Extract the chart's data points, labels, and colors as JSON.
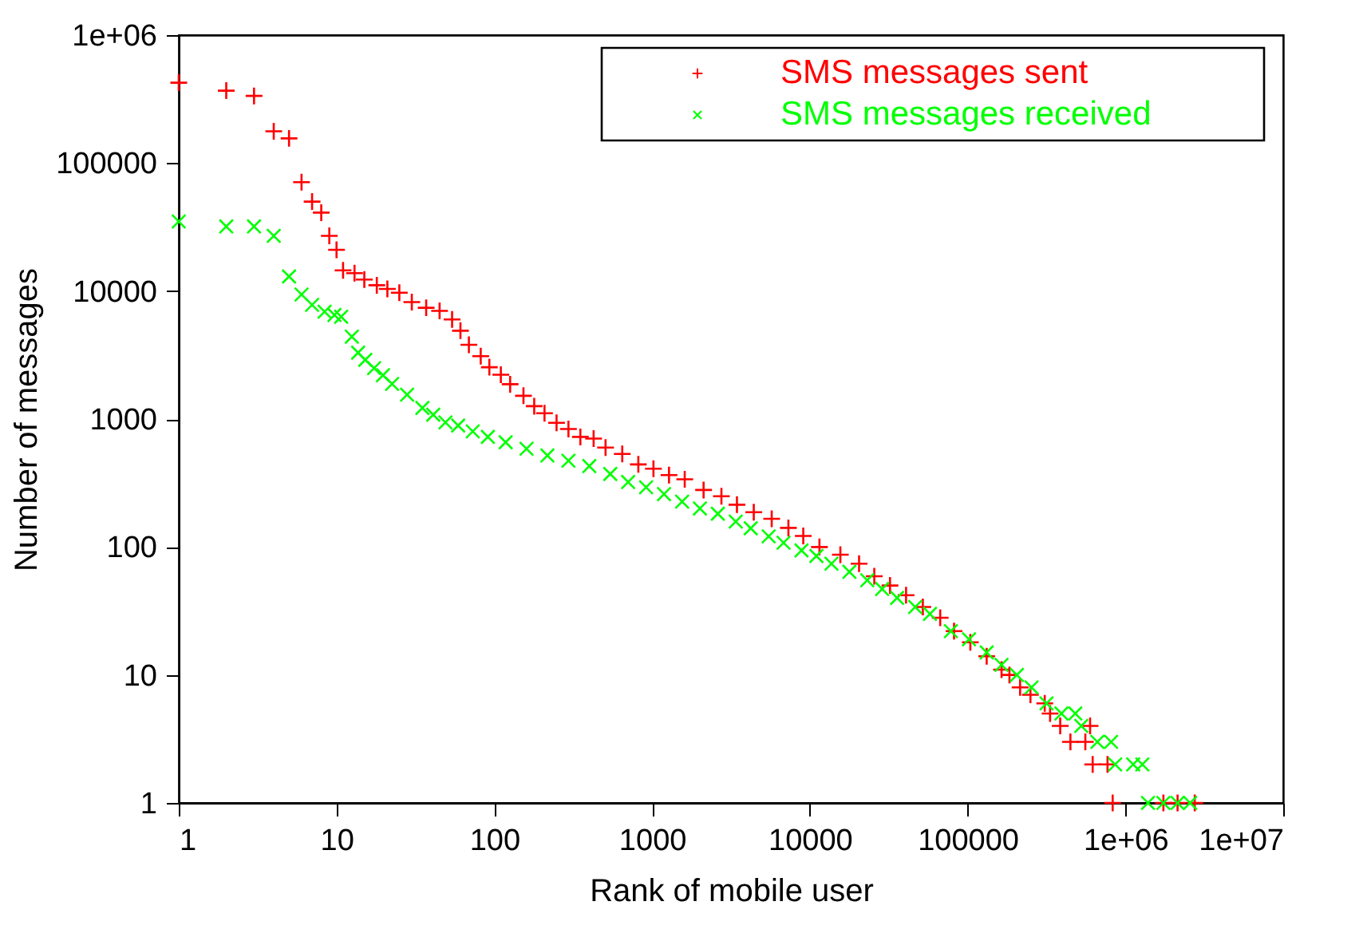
{
  "chart_data": {
    "type": "scatter",
    "xlabel": "Rank of mobile user",
    "ylabel": "Number of messages",
    "log": "xy",
    "grid": false,
    "legend": "top right",
    "xlim": [
      1,
      10000000
    ],
    "ylim": [
      1,
      1000000
    ],
    "xticks": [
      1,
      10,
      100,
      1000,
      10000,
      100000,
      {
        "value": 1000000,
        "label": "1e+06"
      },
      {
        "value": 10000000,
        "label": "1e+07"
      }
    ],
    "yticks": [
      1,
      10,
      100,
      1000,
      10000,
      100000,
      {
        "value": 1000000,
        "label": "1e+06"
      }
    ],
    "series": [
      {
        "name": "SMS messages sent",
        "color": "#ff0000",
        "marker": "cross",
        "x": [
          1,
          2,
          3,
          4,
          5,
          6,
          7,
          8,
          9,
          10,
          11,
          13,
          15,
          18,
          21,
          25,
          30,
          37,
          45,
          54,
          61,
          69,
          82,
          93,
          110,
          126,
          153,
          179,
          208,
          248,
          295,
          351,
          426,
          507,
          647,
          818,
          1020,
          1280,
          1610,
          2120,
          2750,
          3450,
          4410,
          5730,
          7310,
          9080,
          11500,
          15600,
          20500,
          25600,
          32200,
          40700,
          52000,
          67000,
          82000,
          104000,
          132000,
          164000,
          184000,
          215000,
          250000,
          308000,
          333000,
          386000,
          448000,
          557000,
          597000,
          620000,
          770000,
          830000,
          1740000,
          2140000,
          2750000
        ],
        "values": [
          425000,
          368000,
          335000,
          177000,
          156000,
          71000,
          50000,
          41000,
          27000,
          21000,
          14500,
          13800,
          12300,
          11100,
          10400,
          9700,
          8200,
          7400,
          7000,
          6000,
          4900,
          3800,
          3100,
          2540,
          2220,
          1870,
          1520,
          1260,
          1110,
          935,
          835,
          725,
          703,
          598,
          533,
          442,
          409,
          365,
          338,
          279,
          249,
          214,
          187,
          166,
          141,
          122,
          100,
          87,
          74,
          59,
          50,
          42,
          34,
          28,
          22,
          18,
          14,
          11,
          10,
          8,
          7,
          6,
          5,
          4,
          3,
          3,
          4,
          2,
          2,
          1,
          1,
          1,
          1
        ]
      },
      {
        "name": "SMS messages received",
        "color": "#00ff00",
        "marker": "x",
        "x": [
          1,
          2,
          3,
          4,
          5,
          6,
          7,
          8.4,
          9.7,
          10.7,
          12.5,
          13.7,
          15.2,
          17.3,
          19.7,
          22.5,
          28,
          35,
          41,
          49,
          59,
          73,
          91,
          118,
          160,
          217,
          295,
          400,
          543,
          705,
          916,
          1190,
          1550,
          2010,
          2610,
          3390,
          4220,
          5480,
          6810,
          8850,
          11000,
          13700,
          17800,
          23100,
          28700,
          35700,
          46500,
          57700,
          78300,
          102000,
          132000,
          164000,
          205000,
          254000,
          316000,
          393000,
          481000,
          525000,
          664000,
          811000,
          861000,
          1120000,
          1280000,
          1390000,
          1740000,
          2140000,
          2570000
        ],
        "values": [
          35000,
          32000,
          32000,
          27000,
          13000,
          9400,
          7800,
          6900,
          6500,
          6300,
          4400,
          3300,
          2900,
          2500,
          2200,
          1880,
          1550,
          1220,
          1080,
          940,
          890,
          800,
          725,
          658,
          586,
          519,
          472,
          429,
          372,
          322,
          293,
          259,
          226,
          200,
          182,
          158,
          140,
          121,
          108,
          94,
          85,
          74,
          64,
          55,
          47,
          40,
          34,
          30,
          22,
          19,
          15,
          12,
          10,
          8,
          6,
          5,
          5,
          4,
          3,
          3,
          2,
          2,
          2,
          1,
          1,
          1,
          1
        ]
      }
    ]
  }
}
